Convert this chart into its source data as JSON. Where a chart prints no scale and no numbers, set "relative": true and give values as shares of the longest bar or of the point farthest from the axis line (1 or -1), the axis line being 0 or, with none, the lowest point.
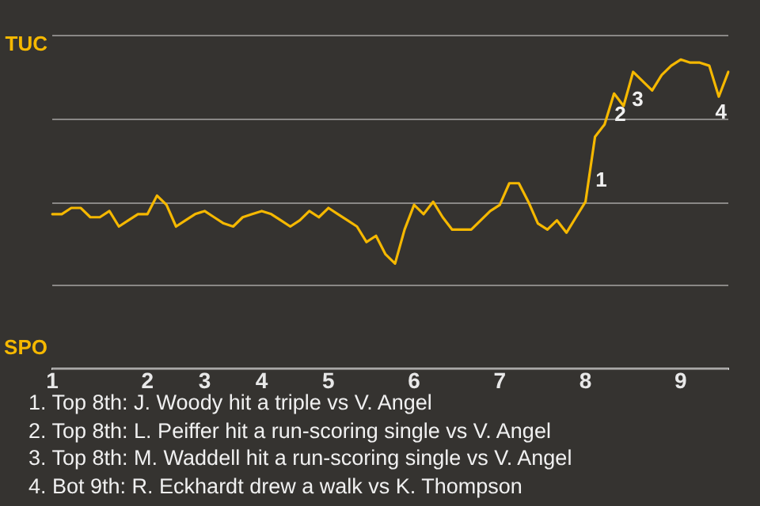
{
  "chart_data": {
    "type": "line",
    "relative": true,
    "categories": [
      "1",
      null,
      null,
      null,
      null,
      null,
      null,
      null,
      null,
      null,
      "2",
      null,
      null,
      null,
      null,
      null,
      "3",
      null,
      null,
      null,
      null,
      null,
      "4",
      null,
      null,
      null,
      null,
      null,
      null,
      "5",
      null,
      null,
      null,
      null,
      null,
      null,
      null,
      null,
      "6",
      null,
      null,
      null,
      null,
      null,
      null,
      null,
      null,
      "7",
      null,
      null,
      null,
      null,
      null,
      null,
      null,
      null,
      "8",
      null,
      null,
      null,
      null,
      null,
      null,
      null,
      null,
      null,
      "9",
      null,
      null,
      null,
      null,
      null
    ],
    "grid": "y",
    "marker": "none",
    "series": [
      {
        "color": "#f5b800",
        "values": [
          0.5,
          0.5,
          0.52,
          0.52,
          0.49,
          0.49,
          0.51,
          0.46,
          0.48,
          0.5,
          0.5,
          0.56,
          0.53,
          0.46,
          0.48,
          0.5,
          0.51,
          0.49,
          0.47,
          0.46,
          0.49,
          0.5,
          0.51,
          0.5,
          0.48,
          0.46,
          0.48,
          0.51,
          0.49,
          0.52,
          0.5,
          0.48,
          0.46,
          0.41,
          0.43,
          0.37,
          0.34,
          0.45,
          0.53,
          0.5,
          0.54,
          0.49,
          0.45,
          0.45,
          0.45,
          0.48,
          0.51,
          0.53,
          0.6,
          0.6,
          0.54,
          0.47,
          0.45,
          0.48,
          0.44,
          0.49,
          0.54,
          0.75,
          0.79,
          0.89,
          0.85,
          0.96,
          0.93,
          0.9,
          0.95,
          0.98,
          1,
          0.99,
          0.99,
          0.98,
          0.88,
          0.96
        ]
      }
    ],
    "annotations": [
      "TUC",
      "SPO",
      "1",
      "2",
      "3",
      "4",
      "1. Top 8th: J. Woody hit a triple vs V. Angel",
      "2. Top 8th: L. Peiffer hit a run-scoring single vs V. Angel",
      "3. Top 8th: M. Waddell hit a run-scoring single vs V. Angel",
      "4. Bot 9th: R. Eckhardt drew a walk vs K. Thompson"
    ]
  }
}
